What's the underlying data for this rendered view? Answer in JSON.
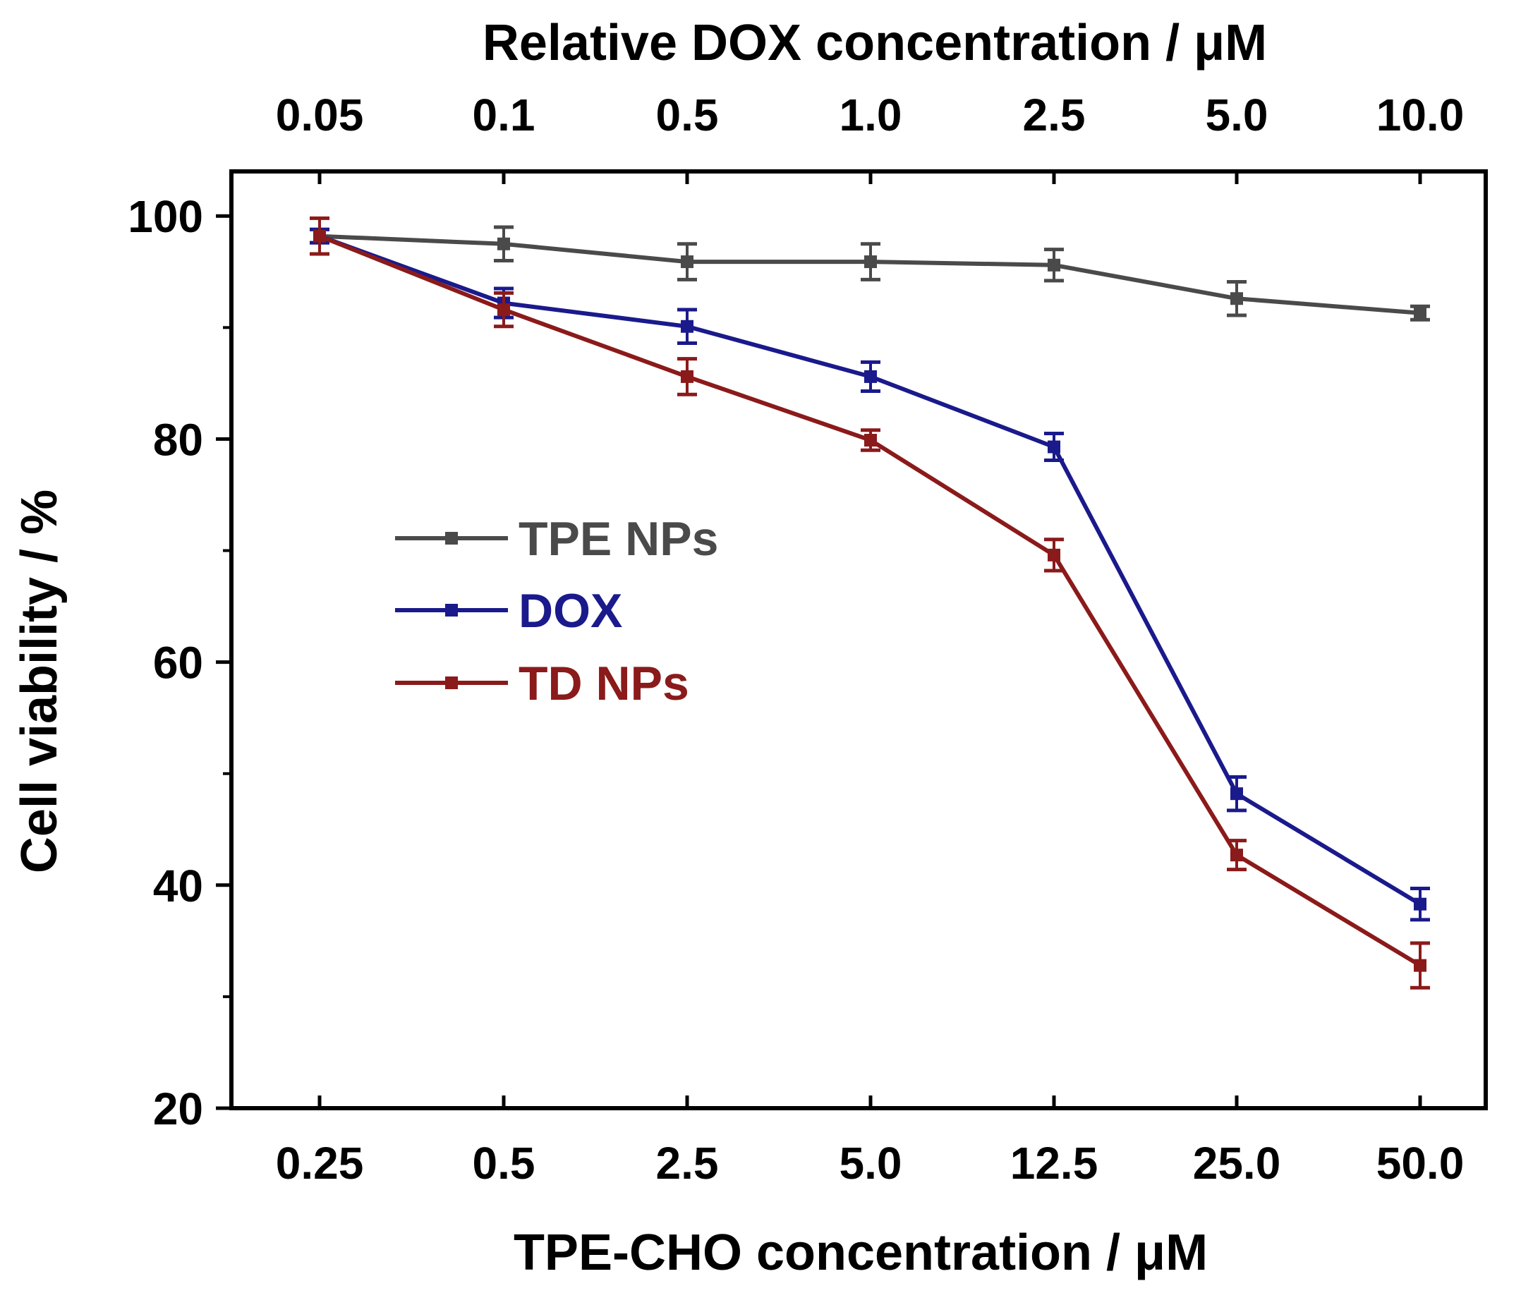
{
  "chart_data": {
    "type": "line",
    "xlabel": "TPE-CHO concentration / μM",
    "x2label": "Relative DOX concentration / μM",
    "ylabel": "Cell viability / %",
    "x_categories": [
      "0.25",
      "0.5",
      "2.5",
      "5.0",
      "12.5",
      "25.0",
      "50.0"
    ],
    "x2_categories": [
      "0.05",
      "0.1",
      "0.5",
      "1.0",
      "2.5",
      "5.0",
      "10.0"
    ],
    "ylim": [
      20,
      104
    ],
    "yticks": [
      "20",
      "40",
      "60",
      "80",
      "100"
    ],
    "legend_position": "center-left",
    "series": [
      {
        "name": "TPE NPs",
        "color": "#4a4a4a",
        "values": [
          98.2,
          97.5,
          95.9,
          95.9,
          95.6,
          92.6,
          91.3
        ],
        "errors": [
          0.6,
          1.5,
          1.6,
          1.6,
          1.4,
          1.5,
          0.6
        ]
      },
      {
        "name": "DOX",
        "color": "#1a1a8c",
        "values": [
          98.2,
          92.2,
          90.1,
          85.6,
          79.3,
          48.2,
          38.3
        ],
        "errors": [
          0.6,
          1.3,
          1.5,
          1.3,
          1.2,
          1.5,
          1.4
        ]
      },
      {
        "name": "TD NPs",
        "color": "#8b1a1a",
        "values": [
          98.2,
          91.6,
          85.6,
          79.9,
          69.6,
          42.7,
          32.8
        ],
        "errors": [
          1.6,
          1.5,
          1.6,
          0.9,
          1.4,
          1.3,
          2.0
        ]
      }
    ]
  }
}
